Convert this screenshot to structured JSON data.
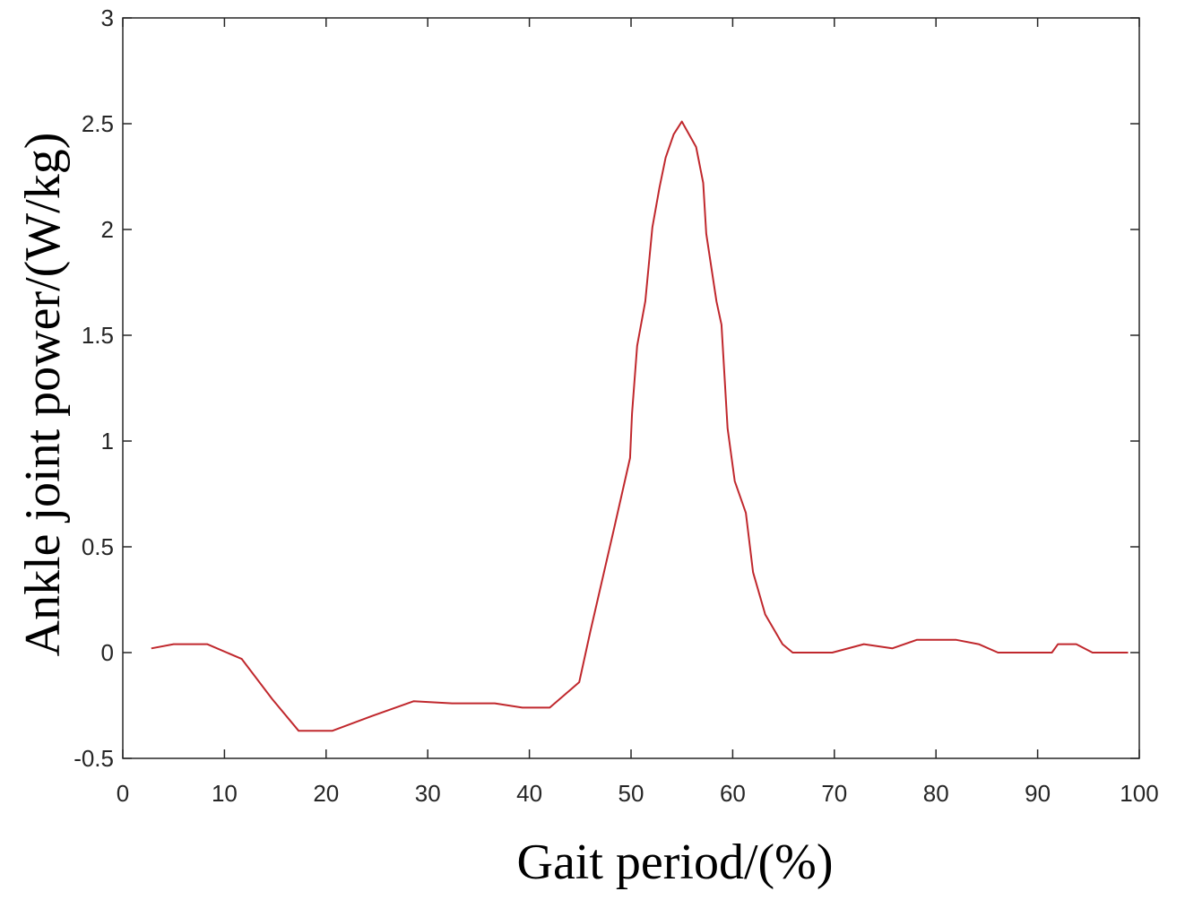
{
  "chart_data": {
    "type": "line",
    "title": "",
    "xlabel": "Gait period/(%)",
    "ylabel": "Ankle joint power/(W/kg)",
    "xlim": [
      0,
      100
    ],
    "ylim": [
      -0.5,
      3
    ],
    "xticks": [
      0,
      10,
      20,
      30,
      40,
      50,
      60,
      70,
      80,
      90,
      100
    ],
    "yticks": [
      -0.5,
      0,
      0.5,
      1,
      1.5,
      2,
      2.5,
      3
    ],
    "ytick_labels": [
      "-0.5",
      "0",
      "0.5",
      "1",
      "1.5",
      "2",
      "2.5",
      "3"
    ],
    "grid": false,
    "box": true,
    "line_color": "#c0282d",
    "series": [
      {
        "x": [
          2.8,
          5,
          8.3,
          11.7,
          14.7,
          17.3,
          20.6,
          24.5,
          28.6,
          32.4,
          36.6,
          39.3,
          42,
          44.9,
          46,
          48.3,
          49.9,
          50.1,
          50.6,
          51.4,
          52.1,
          52.8,
          53.4,
          54.2,
          55,
          56.4,
          57.1,
          57.4,
          58.4,
          58.9,
          59.5,
          60.2,
          61.3,
          62,
          63.2,
          64.9,
          65.9,
          67.7,
          69.8,
          72.9,
          75.7,
          78.1,
          82,
          84.2,
          86.1,
          88.9,
          91.4,
          92,
          93.8,
          95.4,
          98.9
        ],
        "y": [
          0.02,
          0.04,
          0.04,
          -0.03,
          -0.22,
          -0.37,
          -0.37,
          -0.3,
          -0.23,
          -0.24,
          -0.24,
          -0.26,
          -0.26,
          -0.14,
          0.1,
          0.58,
          0.92,
          1.13,
          1.45,
          1.66,
          2.01,
          2.2,
          2.34,
          2.45,
          2.51,
          2.39,
          2.22,
          1.98,
          1.66,
          1.55,
          1.06,
          0.81,
          0.66,
          0.38,
          0.18,
          0.04,
          0,
          0,
          0,
          0.04,
          0.02,
          0.06,
          0.06,
          0.04,
          0,
          0,
          0,
          0.04,
          0.04,
          0,
          0
        ]
      }
    ]
  }
}
